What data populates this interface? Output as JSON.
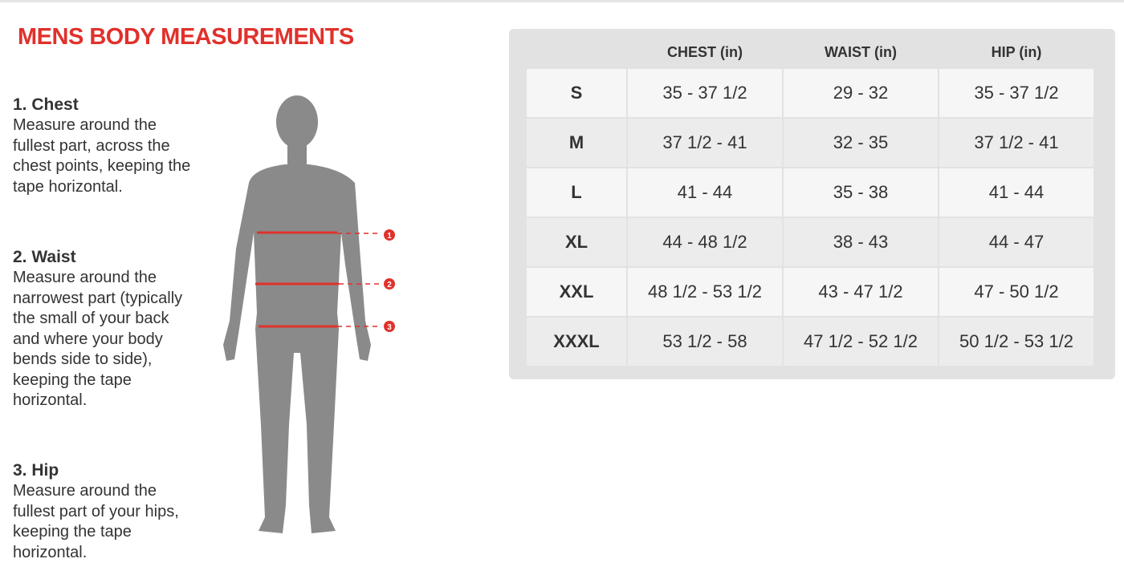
{
  "title": "MENS BODY MEASUREMENTS",
  "instructions": [
    {
      "heading": "1. Chest",
      "text": "Measure around the fullest part, across the chest points, keeping the tape horizontal."
    },
    {
      "heading": "2. Waist",
      "text": "Measure around the narrowest part (typically the small of your back and where your body bends side to side), keeping the tape horizontal."
    },
    {
      "heading": "3. Hip",
      "text": "Measure around the fullest part of your hips, keeping the tape horizontal."
    }
  ],
  "figure": {
    "markers": [
      "1",
      "2",
      "3"
    ],
    "accent": "#e0312b",
    "silhouette": "#8a8a8a"
  },
  "table": {
    "headers": [
      "",
      "CHEST (in)",
      "WAIST (in)",
      "HIP (in)"
    ],
    "rows": [
      [
        "S",
        "35 - 37 1/2",
        "29 - 32",
        "35 - 37 1/2"
      ],
      [
        "M",
        "37 1/2 - 41",
        "32 - 35",
        "37 1/2 - 41"
      ],
      [
        "L",
        "41 - 44",
        "35 - 38",
        "41 - 44"
      ],
      [
        "XL",
        "44 - 48 1/2",
        "38 - 43",
        "44 - 47"
      ],
      [
        "XXL",
        "48 1/2 - 53 1/2",
        "43 - 47 1/2",
        "47 - 50 1/2"
      ],
      [
        "XXXL",
        "53 1/2 - 58",
        "47 1/2 - 52 1/2",
        "50 1/2 - 53 1/2"
      ]
    ]
  }
}
